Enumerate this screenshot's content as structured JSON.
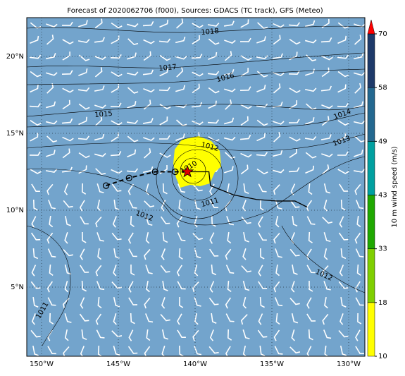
{
  "title": "Forecast of 2020062706 (f000), Sources: GDACS (TC track), GFS (Meteo)",
  "lon_ticks": [
    {
      "value": -150,
      "label": "150°W"
    },
    {
      "value": -145,
      "label": "145°W"
    },
    {
      "value": -140,
      "label": "140°W"
    },
    {
      "value": -135,
      "label": "135°W"
    },
    {
      "value": -130,
      "label": "130°W"
    }
  ],
  "lat_ticks": [
    {
      "value": 5,
      "label": "5°N"
    },
    {
      "value": 10,
      "label": "10°N"
    },
    {
      "value": 15,
      "label": "15°N"
    },
    {
      "value": 20,
      "label": "20°N"
    }
  ],
  "isobar_labels": [
    "1018",
    "1017",
    "1016",
    "1015",
    "1014",
    "1013",
    "1012",
    "1010",
    "1011",
    "1012",
    "1012",
    "1011"
  ],
  "colorbar": {
    "label": "10 m wind speed (m/s)",
    "ticks": [
      10,
      18,
      33,
      43,
      49,
      58,
      70
    ],
    "colors": [
      "#ffff00",
      "#7fcf00",
      "#1fa800",
      "#00a0a0",
      "#236890",
      "#1e3a6a"
    ],
    "extend_color": "#ff0000"
  },
  "track": {
    "past": [
      {
        "lon": -145.8,
        "lat": 11.6
      },
      {
        "lon": -144.3,
        "lat": 12.1
      },
      {
        "lon": -142.6,
        "lat": 12.5
      },
      {
        "lon": -141.3,
        "lat": 12.5
      }
    ],
    "current": {
      "lon": -140.5,
      "lat": 12.5
    },
    "forecast": [
      {
        "lon": -140.5,
        "lat": 12.5
      },
      {
        "lon": -139.1,
        "lat": 12.5
      },
      {
        "lon": -139.0,
        "lat": 11.6
      },
      {
        "lon": -137.5,
        "lat": 11.0
      },
      {
        "lon": -136.0,
        "lat": 10.7
      },
      {
        "lon": -134.7,
        "lat": 10.6
      },
      {
        "lon": -133.5,
        "lat": 10.6
      },
      {
        "lon": -132.7,
        "lat": 10.2
      }
    ]
  }
}
